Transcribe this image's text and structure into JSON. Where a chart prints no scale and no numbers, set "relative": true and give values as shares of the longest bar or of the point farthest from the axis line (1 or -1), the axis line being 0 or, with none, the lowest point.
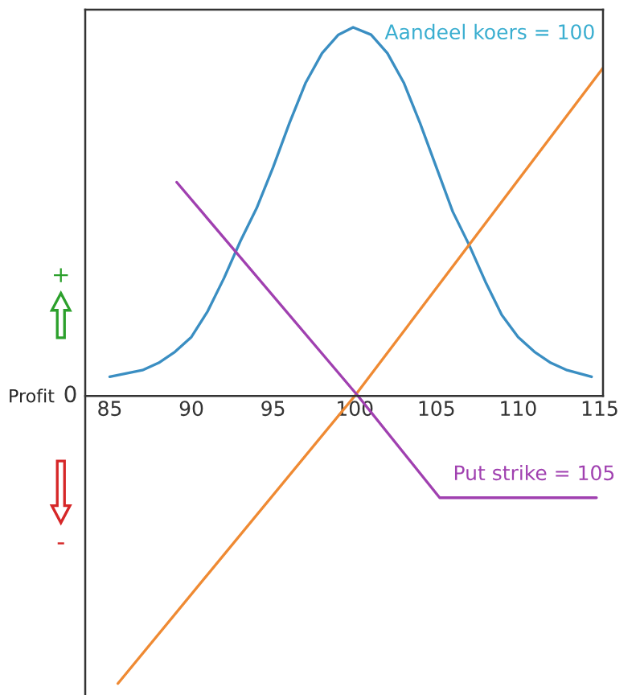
{
  "chart_data": {
    "type": "line",
    "relative": true,
    "ylabel": "Profit",
    "xlim": [
      83.5,
      115.2
    ],
    "xticks": [
      85,
      90,
      95,
      100,
      105,
      110,
      115
    ],
    "series": [
      {
        "color": "#3a8ec2",
        "x": [
          85,
          87,
          88,
          89,
          90,
          91,
          92,
          93,
          94,
          95,
          96,
          97,
          98,
          99,
          99.9,
          101,
          102,
          103,
          104,
          105,
          106,
          107,
          108,
          109,
          110,
          111,
          112,
          113,
          114.5
        ],
        "values": [
          0.052,
          0.07,
          0.09,
          0.12,
          0.16,
          0.23,
          0.32,
          0.42,
          0.51,
          0.62,
          0.74,
          0.85,
          0.93,
          0.98,
          1.0,
          0.98,
          0.93,
          0.85,
          0.74,
          0.62,
          0.5,
          0.41,
          0.31,
          0.22,
          0.16,
          0.12,
          0.09,
          0.07,
          0.052
        ]
      },
      {
        "color": "#ef8a33",
        "x": [
          85.5,
          100,
          115.2
        ],
        "values": [
          -0.78,
          0,
          0.89
        ]
      },
      {
        "color": "#a040b0",
        "x": [
          89.1,
          100.2,
          105.2,
          114.8
        ],
        "values": [
          0.58,
          0,
          -0.276,
          -0.276
        ]
      }
    ],
    "annotations": [
      "Aandeel koers = 100",
      {
        "text": "Put strike = 105",
        "x": 105.2,
        "y": -0.276
      },
      "0",
      "+",
      "-"
    ],
    "grid": false,
    "legend": false,
    "marker": "none",
    "line_style": "solid"
  }
}
